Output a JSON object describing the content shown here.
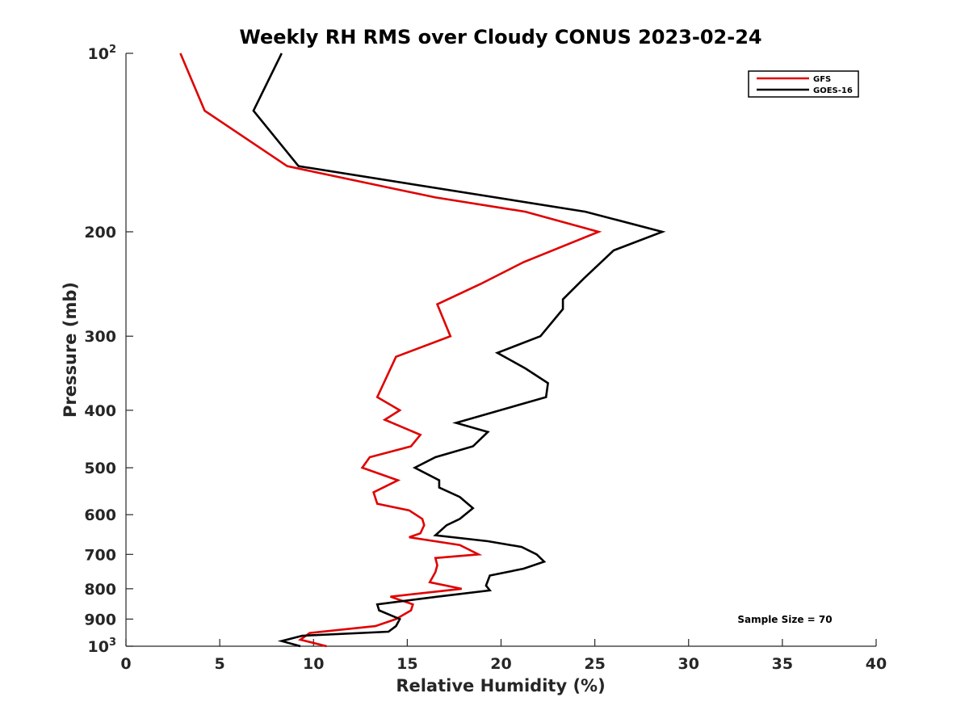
{
  "chart_data": {
    "type": "line",
    "title": "Weekly RH RMS over Cloudy CONUS 2023-02-24",
    "xlabel": "Relative Humidity (%)",
    "ylabel": "Pressure (mb)",
    "xlim": [
      0,
      40
    ],
    "ylim": [
      100,
      1000
    ],
    "y_scale": "log",
    "y_reversed": true,
    "grid": false,
    "legend_position": "top-right",
    "x_ticks": [
      0,
      5,
      10,
      15,
      20,
      25,
      30,
      35,
      40
    ],
    "y_ticks": [
      {
        "value": 100,
        "label": "10",
        "sup": "2"
      },
      {
        "value": 200,
        "label": "200",
        "sup": ""
      },
      {
        "value": 300,
        "label": "300",
        "sup": ""
      },
      {
        "value": 400,
        "label": "400",
        "sup": ""
      },
      {
        "value": 500,
        "label": "500",
        "sup": ""
      },
      {
        "value": 600,
        "label": "600",
        "sup": ""
      },
      {
        "value": 700,
        "label": "700",
        "sup": ""
      },
      {
        "value": 800,
        "label": "800",
        "sup": ""
      },
      {
        "value": 900,
        "label": "900",
        "sup": ""
      },
      {
        "value": 1000,
        "label": "10",
        "sup": "3"
      }
    ],
    "series": [
      {
        "name": "GFS",
        "color": "#e00000",
        "points": [
          [
            2.9,
            100
          ],
          [
            4.2,
            125
          ],
          [
            8.6,
            155
          ],
          [
            16.5,
            175
          ],
          [
            21.3,
            185
          ],
          [
            25.2,
            200
          ],
          [
            21.2,
            225
          ],
          [
            18.9,
            245
          ],
          [
            16.6,
            265
          ],
          [
            17.3,
            300
          ],
          [
            14.4,
            325
          ],
          [
            13.4,
            380
          ],
          [
            14.6,
            400
          ],
          [
            13.8,
            415
          ],
          [
            15.7,
            440
          ],
          [
            15.2,
            460
          ],
          [
            13.0,
            480
          ],
          [
            12.6,
            500
          ],
          [
            14.5,
            525
          ],
          [
            13.2,
            550
          ],
          [
            13.4,
            575
          ],
          [
            15.1,
            590
          ],
          [
            15.8,
            610
          ],
          [
            15.9,
            625
          ],
          [
            15.7,
            645
          ],
          [
            15.1,
            655
          ],
          [
            17.8,
            675
          ],
          [
            18.8,
            700
          ],
          [
            16.5,
            710
          ],
          [
            16.6,
            730
          ],
          [
            16.5,
            750
          ],
          [
            16.2,
            780
          ],
          [
            17.9,
            800
          ],
          [
            14.1,
            825
          ],
          [
            15.3,
            850
          ],
          [
            15.2,
            870
          ],
          [
            14.4,
            900
          ],
          [
            13.3,
            925
          ],
          [
            9.8,
            950
          ],
          [
            9.3,
            975
          ],
          [
            10.7,
            1000
          ]
        ]
      },
      {
        "name": "GOES-16",
        "color": "#000000",
        "points": [
          [
            8.3,
            100
          ],
          [
            6.8,
            125
          ],
          [
            9.2,
            155
          ],
          [
            24.5,
            185
          ],
          [
            28.6,
            200
          ],
          [
            26.0,
            215
          ],
          [
            24.4,
            240
          ],
          [
            23.3,
            260
          ],
          [
            23.3,
            270
          ],
          [
            22.1,
            300
          ],
          [
            19.8,
            320
          ],
          [
            21.3,
            340
          ],
          [
            22.5,
            360
          ],
          [
            22.4,
            380
          ],
          [
            17.6,
            420
          ],
          [
            19.3,
            435
          ],
          [
            18.5,
            460
          ],
          [
            16.5,
            480
          ],
          [
            15.4,
            500
          ],
          [
            16.7,
            525
          ],
          [
            16.7,
            540
          ],
          [
            17.8,
            560
          ],
          [
            18.5,
            585
          ],
          [
            17.8,
            610
          ],
          [
            17.1,
            625
          ],
          [
            16.5,
            650
          ],
          [
            19.3,
            665
          ],
          [
            21.1,
            680
          ],
          [
            21.9,
            700
          ],
          [
            22.3,
            720
          ],
          [
            21.2,
            740
          ],
          [
            19.4,
            760
          ],
          [
            19.2,
            790
          ],
          [
            19.4,
            805
          ],
          [
            16.6,
            825
          ],
          [
            13.4,
            850
          ],
          [
            13.5,
            870
          ],
          [
            14.6,
            900
          ],
          [
            14.4,
            925
          ],
          [
            14.0,
            945
          ],
          [
            9.4,
            960
          ],
          [
            8.3,
            980
          ],
          [
            9.3,
            1000
          ]
        ]
      }
    ],
    "annotations": [
      "Sample Size = 70"
    ]
  }
}
